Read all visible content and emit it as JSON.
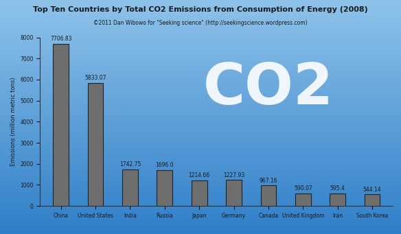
{
  "chart_data": {
    "type": "bar",
    "title": "Top Ten Countries by Total CO2 Emissions from Consumption of Energy (2008)",
    "subtitle": "©2011 Dan Wibowo for \"Seeking science\" (http://seekingscience.wordpress.com)",
    "y_label": "Emissions (million metric tons)",
    "annotation": "CO2",
    "categories": [
      "China",
      "United States",
      "India",
      "Russia",
      "Japan",
      "Germany",
      "Canada",
      "United Kingdom",
      "Iran",
      "South Korea"
    ],
    "values": [
      7706.83,
      5833.07,
      1742.75,
      1696.0,
      1214.66,
      1227.93,
      967.16,
      590.07,
      595.4,
      544.14
    ],
    "color": "#6e6e6e",
    "ylim": [
      0,
      8000
    ],
    "yticks": [
      0,
      1000,
      2000,
      3000,
      4000,
      5000,
      6000,
      7000,
      8000
    ],
    "data_labels": true,
    "grid": false
  }
}
